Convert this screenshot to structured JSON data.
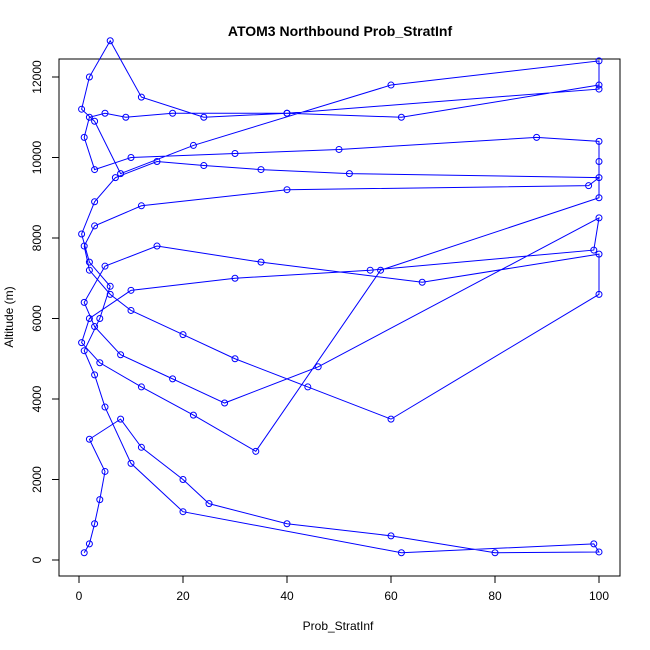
{
  "chart_data": {
    "type": "scatter",
    "title": "ATOM3 Northbound Prob_StratInf",
    "xlabel": "Prob_StratInf",
    "ylabel": "Altitude (m)",
    "xlim": [
      0,
      100
    ],
    "ylim": [
      0,
      12000
    ],
    "xticks": [
      0,
      20,
      40,
      60,
      80,
      100
    ],
    "yticks": [
      0,
      2000,
      4000,
      6000,
      8000,
      10000,
      12000
    ],
    "grid": false,
    "series_color": "#0000ff",
    "marker": "open-circle",
    "connected": true,
    "series": [
      {
        "x": [
          1,
          2,
          3,
          4,
          5,
          2,
          8,
          12,
          20,
          25,
          40,
          60,
          80,
          100,
          99,
          62,
          20,
          10,
          5,
          3,
          1,
          4,
          6,
          2,
          0.5,
          3,
          7,
          15,
          24,
          35,
          52,
          100,
          98,
          40,
          12,
          3,
          1,
          2,
          6,
          10,
          20,
          30,
          44,
          60,
          100,
          100,
          66,
          35,
          15,
          5,
          1,
          3,
          8,
          18,
          28,
          46,
          100,
          99,
          56,
          30,
          10,
          2,
          0.5,
          4,
          12,
          22,
          34,
          58,
          100,
          100,
          100,
          88,
          50,
          30,
          10,
          3,
          1,
          2,
          5,
          9,
          18,
          40,
          100,
          100,
          60,
          22,
          8,
          3,
          0.5,
          2,
          6,
          12,
          24,
          40,
          62,
          100
        ],
        "y": [
          180,
          400,
          900,
          1500,
          2200,
          3000,
          3500,
          2800,
          2000,
          1400,
          900,
          600,
          180,
          200,
          400,
          180,
          1200,
          2400,
          3800,
          4600,
          5200,
          6000,
          6800,
          7400,
          8100,
          8900,
          9500,
          9900,
          9800,
          9700,
          9600,
          9500,
          9300,
          9200,
          8800,
          8300,
          7800,
          7200,
          6600,
          6200,
          5600,
          5000,
          4300,
          3500,
          6600,
          7600,
          6900,
          7400,
          7800,
          7300,
          6400,
          5800,
          5100,
          4500,
          3900,
          4800,
          8500,
          7700,
          7200,
          7000,
          6700,
          6000,
          5400,
          4900,
          4300,
          3600,
          2700,
          7200,
          9000,
          9900,
          10400,
          10500,
          10200,
          10100,
          10000,
          9700,
          10500,
          11000,
          11100,
          11000,
          11100,
          11100,
          11700,
          12400,
          11800,
          10300,
          9600,
          10900,
          11200,
          12000,
          12900,
          11500,
          11000,
          11100,
          11000,
          11800
        ]
      }
    ]
  }
}
